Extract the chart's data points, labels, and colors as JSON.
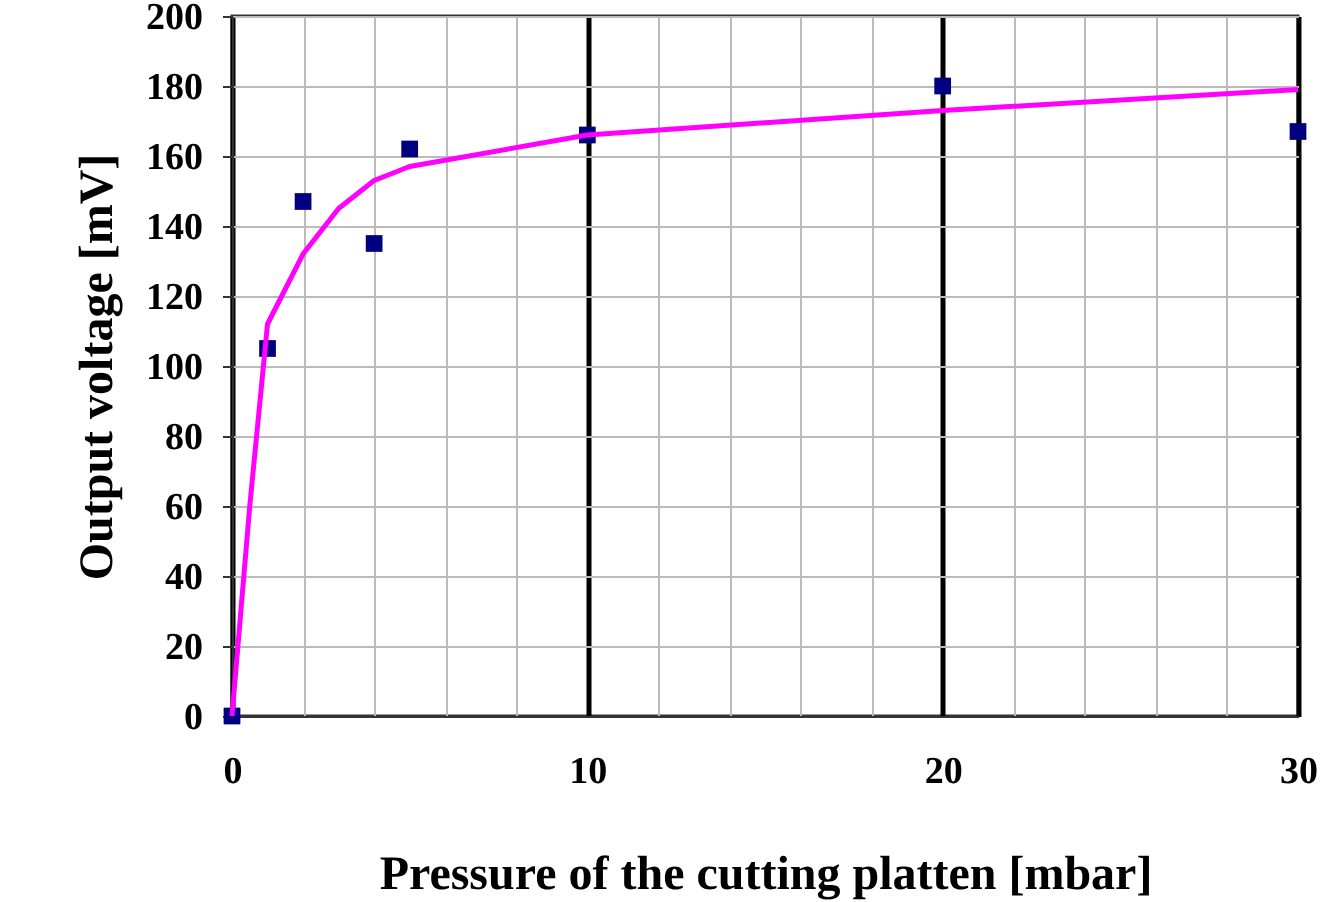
{
  "chart_data": {
    "type": "scatter",
    "xlabel": "Pressure of the cutting platten [mbar]",
    "ylabel": "Output voltage [mV]",
    "xlim": [
      0,
      30
    ],
    "ylim": [
      0,
      200
    ],
    "xticks": [
      0,
      {
        "value": 2,
        "label": null
      },
      {
        "value": 4,
        "label": null
      },
      {
        "value": 6,
        "label": null
      },
      {
        "value": 8,
        "label": null
      },
      10,
      {
        "value": 12,
        "label": null
      },
      {
        "value": 14,
        "label": null
      },
      {
        "value": 16,
        "label": null
      },
      {
        "value": 18,
        "label": null
      },
      20,
      {
        "value": 22,
        "label": null
      },
      {
        "value": 24,
        "label": null
      },
      {
        "value": 26,
        "label": null
      },
      {
        "value": 28,
        "label": null
      },
      30
    ],
    "yticks": [
      0,
      20,
      40,
      60,
      80,
      100,
      120,
      140,
      160,
      180,
      200
    ],
    "grid": true,
    "series": [
      {
        "type": "scatter",
        "color": "#000080",
        "marker": "square",
        "x": [
          0,
          1,
          2,
          4,
          5,
          10,
          20,
          30
        ],
        "values": [
          0,
          105,
          147,
          135,
          162,
          166,
          180,
          167
        ]
      },
      {
        "type": "line",
        "color": "#ff00ff",
        "marker": "none",
        "line_style": "solid",
        "x": [
          0,
          0.5,
          1,
          2,
          3,
          4,
          5,
          10,
          20,
          30
        ],
        "values": [
          0,
          60,
          112,
          132,
          145,
          153,
          157,
          166,
          173,
          179
        ]
      }
    ]
  }
}
